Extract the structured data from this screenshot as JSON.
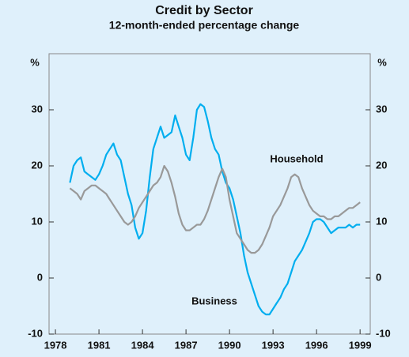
{
  "chart_data": {
    "type": "line",
    "title": "Credit by Sector",
    "subtitle": "12-month-ended percentage change",
    "y_label": "%",
    "y2_label": "%",
    "annotations": [
      "Household",
      "Business"
    ],
    "x": [
      1979,
      1979.25,
      1979.5,
      1979.75,
      1980,
      1980.25,
      1980.5,
      1980.75,
      1981,
      1981.25,
      1981.5,
      1981.75,
      1982,
      1982.25,
      1982.5,
      1982.75,
      1983,
      1983.25,
      1983.5,
      1983.75,
      1984,
      1984.25,
      1984.5,
      1984.75,
      1985,
      1985.25,
      1985.5,
      1985.75,
      1986,
      1986.25,
      1986.5,
      1986.75,
      1987,
      1987.25,
      1987.5,
      1987.75,
      1988,
      1988.25,
      1988.5,
      1988.75,
      1989,
      1989.25,
      1989.5,
      1989.75,
      1990,
      1990.25,
      1990.5,
      1990.75,
      1991,
      1991.25,
      1991.5,
      1991.75,
      1992,
      1992.25,
      1992.5,
      1992.75,
      1993,
      1993.25,
      1993.5,
      1993.75,
      1994,
      1994.25,
      1994.5,
      1994.75,
      1995,
      1995.25,
      1995.5,
      1995.75,
      1996,
      1996.25,
      1996.5,
      1996.75,
      1997,
      1997.25,
      1997.5,
      1997.75,
      1998,
      1998.25,
      1998.5,
      1998.75,
      1999
    ],
    "series": [
      {
        "name": "Business",
        "color": "#00aeef",
        "values": [
          17,
          20,
          21,
          21.5,
          19,
          18.5,
          18,
          17.5,
          18.5,
          20,
          22,
          23,
          24,
          22,
          21,
          18,
          15,
          13,
          9,
          7,
          8,
          12,
          18,
          23,
          25,
          27,
          25,
          25.5,
          26,
          29,
          27,
          25,
          22,
          21,
          25,
          30,
          31,
          30.5,
          28,
          25,
          23,
          22,
          19,
          17,
          16,
          14,
          11,
          8,
          4,
          1,
          -1,
          -3,
          -5,
          -6,
          -6.5,
          -6.5,
          -5.5,
          -4.5,
          -3.5,
          -2,
          -1,
          1,
          3,
          4,
          5,
          6.5,
          8,
          10,
          10.5,
          10.5,
          10,
          9,
          8,
          8.5,
          9,
          9,
          9,
          9.5,
          9,
          9.5,
          9.5
        ]
      },
      {
        "name": "Household",
        "color": "#999999",
        "values": [
          16,
          15.5,
          15,
          14,
          15.5,
          16,
          16.5,
          16.5,
          16,
          15.5,
          15,
          14,
          13,
          12,
          11,
          10,
          9.5,
          10,
          11,
          12.5,
          13.5,
          14.5,
          15.5,
          16.5,
          17,
          18,
          20,
          19,
          17,
          14.5,
          11.5,
          9.5,
          8.5,
          8.5,
          9,
          9.5,
          9.5,
          10.5,
          12,
          14,
          16,
          18,
          19.5,
          18,
          14,
          11,
          8,
          7,
          6,
          5,
          4.5,
          4.5,
          5,
          6,
          7.5,
          9,
          11,
          12,
          13,
          14.5,
          16,
          18,
          18.5,
          18,
          16,
          14.5,
          13,
          12,
          11.5,
          11,
          11,
          10.5,
          10.5,
          11,
          11,
          11.5,
          12,
          12.5,
          12.5,
          13,
          13.5
        ]
      }
    ],
    "xlim": [
      1977.56,
      1999.7
    ],
    "xticks": [
      1978,
      1981,
      1984,
      1987,
      1990,
      1993,
      1996,
      1999
    ],
    "ylim": [
      -10,
      40
    ],
    "yticks": [
      -10,
      0,
      10,
      20,
      30
    ],
    "y2lim": [
      -10,
      40
    ],
    "y2ticks": [
      -10,
      0,
      10,
      20,
      30
    ]
  }
}
